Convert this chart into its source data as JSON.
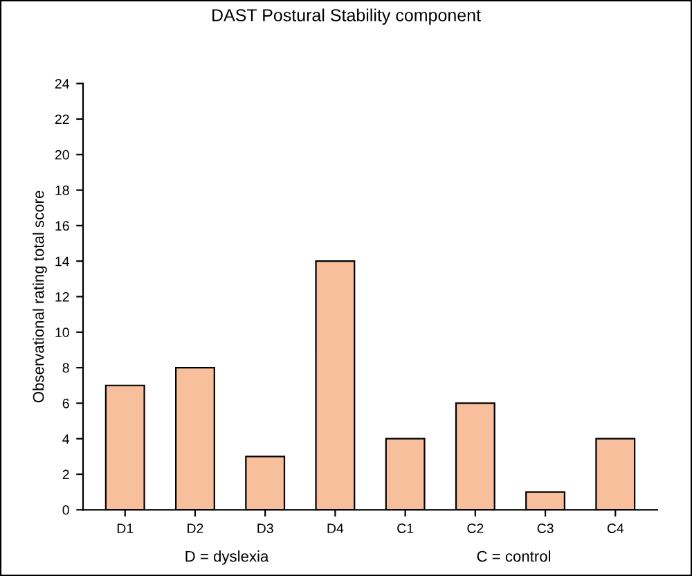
{
  "chart_data": {
    "type": "bar",
    "title": "DAST Postural Stability component",
    "ylabel": "Observational rating total score",
    "categories": [
      "D1",
      "D2",
      "D3",
      "D4",
      "C1",
      "C2",
      "C3",
      "C4"
    ],
    "values": [
      7,
      8,
      3,
      14,
      4,
      6,
      1,
      4
    ],
    "color": "#f7bf9c",
    "ylim": [
      0,
      24
    ],
    "yticks": [
      0,
      2,
      4,
      6,
      8,
      10,
      12,
      14,
      16,
      18,
      20,
      22,
      24
    ],
    "grid": false,
    "annotations": [
      "D = dyslexia",
      "C = control"
    ]
  }
}
